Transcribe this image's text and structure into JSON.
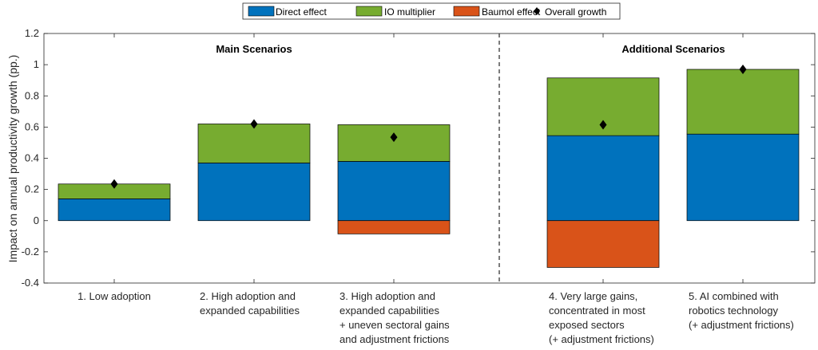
{
  "chart_data": {
    "type": "bar",
    "stacked": true,
    "title": "",
    "xlabel": "",
    "ylabel": "Impact on annual productivity growth (pp.)",
    "ylim": [
      -0.4,
      1.2
    ],
    "yticks": [
      -0.4,
      -0.2,
      0,
      0.2,
      0.4,
      0.6,
      0.8,
      1,
      1.2
    ],
    "ytick_labels": [
      "-0.4",
      "-0.2",
      "0",
      "0.2",
      "0.4",
      "0.6",
      "0.8",
      "1",
      "1.2"
    ],
    "legend_position": "top",
    "categories": [
      [
        "1. Low adoption"
      ],
      [
        "2. High adoption and",
        "expanded capabilities"
      ],
      [
        "3. High adoption and",
        "expanded capabilities",
        "+ uneven sectoral gains",
        "and adjustment frictions"
      ],
      [
        "4. Very large gains,",
        "concentrated in most",
        "exposed sectors",
        "(+ adjustment frictions)"
      ],
      [
        "5. AI combined with",
        "robotics technology",
        "(+ adjustment frictions)"
      ]
    ],
    "series": [
      {
        "name": "Direct effect",
        "color": "#0072BD",
        "values": [
          0.14,
          0.37,
          0.38,
          0.545,
          0.555
        ]
      },
      {
        "name": "IO multiplier",
        "color": "#77AC30",
        "values": [
          0.095,
          0.25,
          0.235,
          0.37,
          0.415
        ]
      },
      {
        "name": "Baumol effect",
        "color": "#D95319",
        "values": [
          0,
          0,
          -0.085,
          -0.3,
          0
        ]
      }
    ],
    "markers": {
      "name": "Overall growth",
      "symbol": "diamond",
      "color": "#000000",
      "values": [
        0.235,
        0.62,
        0.535,
        0.615,
        0.97
      ]
    },
    "groups": [
      {
        "title": "Main Scenarios",
        "category_indices": [
          0,
          1,
          2
        ]
      },
      {
        "title": "Additional Scenarios",
        "category_indices": [
          3,
          4
        ]
      }
    ]
  }
}
